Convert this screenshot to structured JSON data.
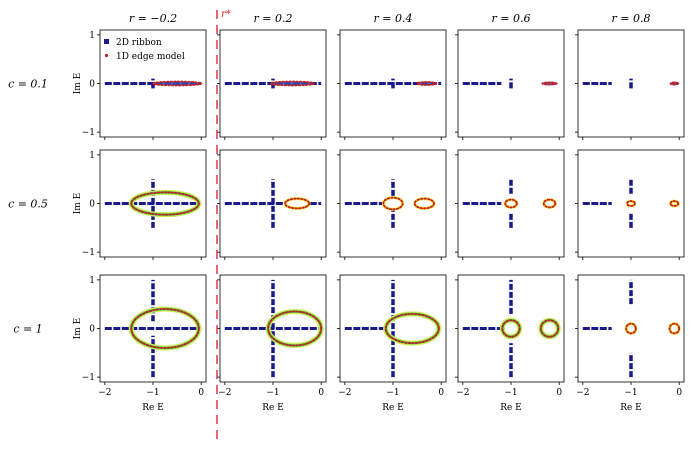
{
  "chart_data": {
    "type": "scatter",
    "title": "",
    "grid_of_panels": {
      "rows": 3,
      "cols": 5
    },
    "column_titles": [
      "r = −0.2",
      "r = 0.2",
      "r = 0.4",
      "r = 0.6",
      "r = 0.8"
    ],
    "row_labels": [
      "c = 0.1",
      "c = 0.5",
      "c = 1"
    ],
    "xlabel": "Re E",
    "ylabel": "Im E",
    "xlim": [
      -2.1,
      0.1
    ],
    "ylim": [
      -1.1,
      1.1
    ],
    "xticks": [
      -2,
      -1,
      0
    ],
    "yticks": [
      -1,
      0,
      1
    ],
    "xtick_labels": [
      "−2",
      "−1",
      "0"
    ],
    "ytick_labels": [
      "−1",
      "0",
      "1"
    ],
    "critical_marker": {
      "label": "r*",
      "position_between": "r = −0.2 and r = 0.2",
      "style": "red dashed line"
    },
    "legend": {
      "placement": "top-left of first panel",
      "entries": [
        {
          "name": "2D ribbon",
          "marker": "square",
          "color": "#1a1a8a"
        },
        {
          "name": "1D edge model",
          "marker": "dot",
          "color": "#c41e1e"
        }
      ]
    },
    "colors": {
      "ribbon": "#1a1a8a",
      "ribbon_core": "#2a55c8",
      "ribbon_highlight": "#3fbf6a",
      "ribbon_glow": "#c9f04a",
      "edge_model": "#c41e1e",
      "rstar_line": "#e0282d",
      "loop_fill": "#f3e23a",
      "loop_inner": "#ffffff"
    },
    "panels": [
      {
        "row": 0,
        "col": 0,
        "ribbon_line_xrange": [
          -2.0,
          0.0
        ],
        "vertical_segments": [
          {
            "x": -1.0,
            "y": [
              -0.1,
              0.1
            ]
          }
        ],
        "edge_loops": [
          {
            "cx": -0.5,
            "cy": 0.0,
            "rx": 0.5,
            "ry": 0.04
          }
        ]
      },
      {
        "row": 0,
        "col": 1,
        "ribbon_line_xrange": [
          -2.0,
          0.0
        ],
        "vertical_segments": [
          {
            "x": -1.0,
            "y": [
              -0.1,
              0.1
            ]
          }
        ],
        "edge_loops": [
          {
            "cx": -0.6,
            "cy": 0.0,
            "rx": 0.45,
            "ry": 0.04
          }
        ]
      },
      {
        "row": 0,
        "col": 2,
        "ribbon_line_xrange": [
          -2.0,
          0.0
        ],
        "vertical_segments": [
          {
            "x": -1.0,
            "y": [
              -0.1,
              0.1
            ]
          }
        ],
        "edge_loops": [
          {
            "cx": -0.3,
            "cy": 0.0,
            "rx": 0.2,
            "ry": 0.03
          }
        ]
      },
      {
        "row": 0,
        "col": 3,
        "ribbon_line_xrange": [
          -2.0,
          -1.2
        ],
        "vertical_segments": [
          {
            "x": -1.0,
            "y": [
              -0.1,
              0.1
            ]
          }
        ],
        "edge_loops": [
          {
            "cx": -0.2,
            "cy": 0.0,
            "rx": 0.15,
            "ry": 0.02
          }
        ]
      },
      {
        "row": 0,
        "col": 4,
        "ribbon_line_xrange": [
          -2.0,
          -1.4
        ],
        "vertical_segments": [
          {
            "x": -1.0,
            "y": [
              -0.1,
              0.1
            ]
          }
        ],
        "edge_loops": [
          {
            "cx": -0.1,
            "cy": 0.0,
            "rx": 0.08,
            "ry": 0.02
          }
        ]
      },
      {
        "row": 1,
        "col": 0,
        "ribbon_line_xrange": [
          -2.0,
          0.0
        ],
        "vertical_segments": [
          {
            "x": -1.0,
            "y": [
              -0.5,
              0.5
            ]
          }
        ],
        "edge_loops": [
          {
            "cx": -0.75,
            "cy": 0.0,
            "rx": 0.7,
            "ry": 0.23
          }
        ]
      },
      {
        "row": 1,
        "col": 1,
        "ribbon_line_xrange": [
          -2.0,
          0.0
        ],
        "vertical_segments": [
          {
            "x": -1.0,
            "y": [
              -0.5,
              0.5
            ]
          }
        ],
        "edge_loops": [
          {
            "cx": -0.5,
            "cy": 0.0,
            "rx": 0.25,
            "ry": 0.1
          }
        ]
      },
      {
        "row": 1,
        "col": 2,
        "ribbon_line_xrange": [
          -2.0,
          -1.2
        ],
        "vertical_segments": [
          {
            "x": -1.0,
            "y": [
              -0.5,
              0.5
            ]
          }
        ],
        "edge_loops": [
          {
            "cx": -1.0,
            "cy": 0.0,
            "rx": 0.2,
            "ry": 0.12
          },
          {
            "cx": -0.35,
            "cy": 0.0,
            "rx": 0.2,
            "ry": 0.1
          }
        ]
      },
      {
        "row": 1,
        "col": 3,
        "ribbon_line_xrange": [
          -2.0,
          -1.2
        ],
        "vertical_segments": [
          {
            "x": -1.0,
            "y": [
              -0.5,
              -0.2
            ]
          },
          {
            "x": -1.0,
            "y": [
              0.2,
              0.5
            ]
          }
        ],
        "edge_loops": [
          {
            "cx": -1.0,
            "cy": 0.0,
            "rx": 0.12,
            "ry": 0.08
          },
          {
            "cx": -0.2,
            "cy": 0.0,
            "rx": 0.12,
            "ry": 0.08
          }
        ]
      },
      {
        "row": 1,
        "col": 4,
        "ribbon_line_xrange": [
          -2.0,
          -1.4
        ],
        "vertical_segments": [
          {
            "x": -1.0,
            "y": [
              -0.5,
              -0.2
            ]
          },
          {
            "x": -1.0,
            "y": [
              0.2,
              0.5
            ]
          }
        ],
        "edge_loops": [
          {
            "cx": -1.0,
            "cy": 0.0,
            "rx": 0.08,
            "ry": 0.05
          },
          {
            "cx": -0.1,
            "cy": 0.0,
            "rx": 0.08,
            "ry": 0.05
          }
        ]
      },
      {
        "row": 2,
        "col": 0,
        "ribbon_line_xrange": [
          -2.0,
          0.0
        ],
        "vertical_segments": [
          {
            "x": -1.0,
            "y": [
              -1.0,
              -0.15
            ]
          },
          {
            "x": -1.0,
            "y": [
              0.15,
              1.0
            ]
          }
        ],
        "edge_loops": [
          {
            "cx": -0.75,
            "cy": 0.0,
            "rx": 0.7,
            "ry": 0.4
          }
        ]
      },
      {
        "row": 2,
        "col": 1,
        "ribbon_line_xrange": [
          -2.0,
          0.0
        ],
        "vertical_segments": [
          {
            "x": -1.0,
            "y": [
              -1.0,
              1.0
            ]
          }
        ],
        "edge_loops": [
          {
            "cx": -0.55,
            "cy": 0.0,
            "rx": 0.55,
            "ry": 0.35
          }
        ]
      },
      {
        "row": 2,
        "col": 2,
        "ribbon_line_xrange": [
          -2.0,
          -1.2
        ],
        "vertical_segments": [
          {
            "x": -1.0,
            "y": [
              -1.0,
              1.0
            ]
          }
        ],
        "edge_loops": [
          {
            "cx": -0.6,
            "cy": 0.0,
            "rx": 0.55,
            "ry": 0.3
          }
        ]
      },
      {
        "row": 2,
        "col": 3,
        "ribbon_line_xrange": [
          -2.0,
          -1.2
        ],
        "vertical_segments": [
          {
            "x": -1.0,
            "y": [
              -1.0,
              -0.3
            ]
          },
          {
            "x": -1.0,
            "y": [
              0.3,
              1.0
            ]
          }
        ],
        "edge_loops": [
          {
            "cx": -1.0,
            "cy": 0.0,
            "rx": 0.18,
            "ry": 0.17
          },
          {
            "cx": -0.2,
            "cy": 0.0,
            "rx": 0.18,
            "ry": 0.17
          }
        ]
      },
      {
        "row": 2,
        "col": 4,
        "ribbon_line_xrange": [
          -2.0,
          -1.4
        ],
        "vertical_segments": [
          {
            "x": -1.0,
            "y": [
              -1.0,
              -0.5
            ]
          },
          {
            "x": -1.0,
            "y": [
              0.5,
              1.0
            ]
          }
        ],
        "edge_loops": [
          {
            "cx": -1.0,
            "cy": 0.0,
            "rx": 0.1,
            "ry": 0.1
          },
          {
            "cx": -0.1,
            "cy": 0.0,
            "rx": 0.1,
            "ry": 0.1
          }
        ]
      }
    ]
  }
}
